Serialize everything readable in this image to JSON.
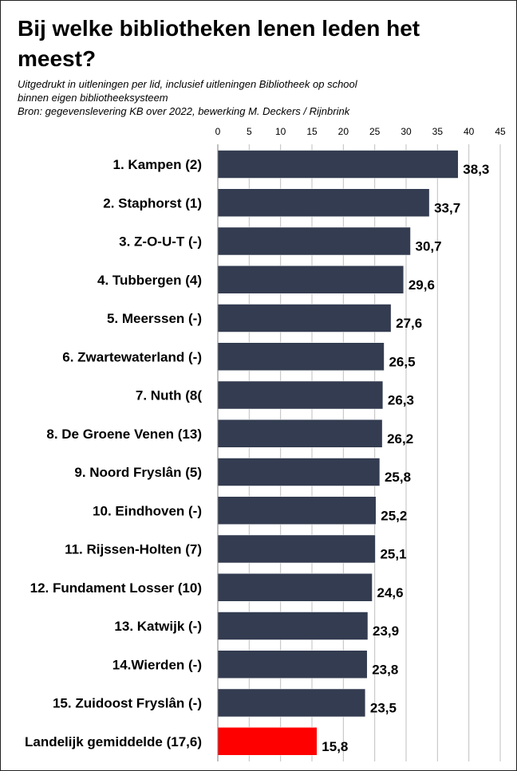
{
  "chart_data": {
    "type": "bar",
    "orientation": "horizontal",
    "title": "Bij welke bibliotheken lenen leden het meest?",
    "subtitle_lines": [
      "Uitgedrukt in uitleningen per lid, inclusief uitleningen Bibliotheek op school",
      "binnen eigen bibliotheeksysteem",
      "Bron: gegevenslevering KB over 2022, bewerking M. Deckers / Rijnbrink"
    ],
    "categories": [
      "1. Kampen (2)",
      "2. Staphorst (1)",
      "3. Z-O-U-T (-)",
      "4. Tubbergen (4)",
      "5. Meerssen (-)",
      "6. Zwartewaterland (-)",
      "7. Nuth (8(",
      "8. De Groene Venen (13)",
      "9. Noord Fryslân (5)",
      "10. Eindhoven (-)",
      "11. Rijssen-Holten (7)",
      "12. Fundament Losser (10)",
      "13. Katwijk (-)",
      "14.Wierden (-)",
      "15. Zuidoost Fryslân (-)",
      "Landelijk gemiddelde (17,6)"
    ],
    "values": [
      38.3,
      33.7,
      30.7,
      29.6,
      27.6,
      26.5,
      26.3,
      26.2,
      25.8,
      25.2,
      25.1,
      24.6,
      23.9,
      23.8,
      23.5,
      15.8
    ],
    "value_labels": [
      "38,3",
      "33,7",
      "30,7",
      "29,6",
      "27,6",
      "26,5",
      "26,3",
      "26,2",
      "25,8",
      "25,2",
      "25,1",
      "24,6",
      "23,9",
      "23,8",
      "23,5",
      "15,8"
    ],
    "xlim": [
      0,
      45
    ],
    "xticks": [
      0,
      5,
      10,
      15,
      20,
      25,
      30,
      35,
      40,
      45
    ],
    "xtick_labels": [
      "0",
      "5",
      "10",
      "15",
      "20",
      "25",
      "30",
      "35",
      "40",
      "45"
    ],
    "axis_position": "top",
    "grid": true,
    "xlabel": "",
    "ylabel": "",
    "colors": {
      "bar": "#333c50",
      "highlight": "#ff0000",
      "grid": "#bfbfbf",
      "bar_edge": "#ffffff"
    },
    "highlight_index": 15
  }
}
